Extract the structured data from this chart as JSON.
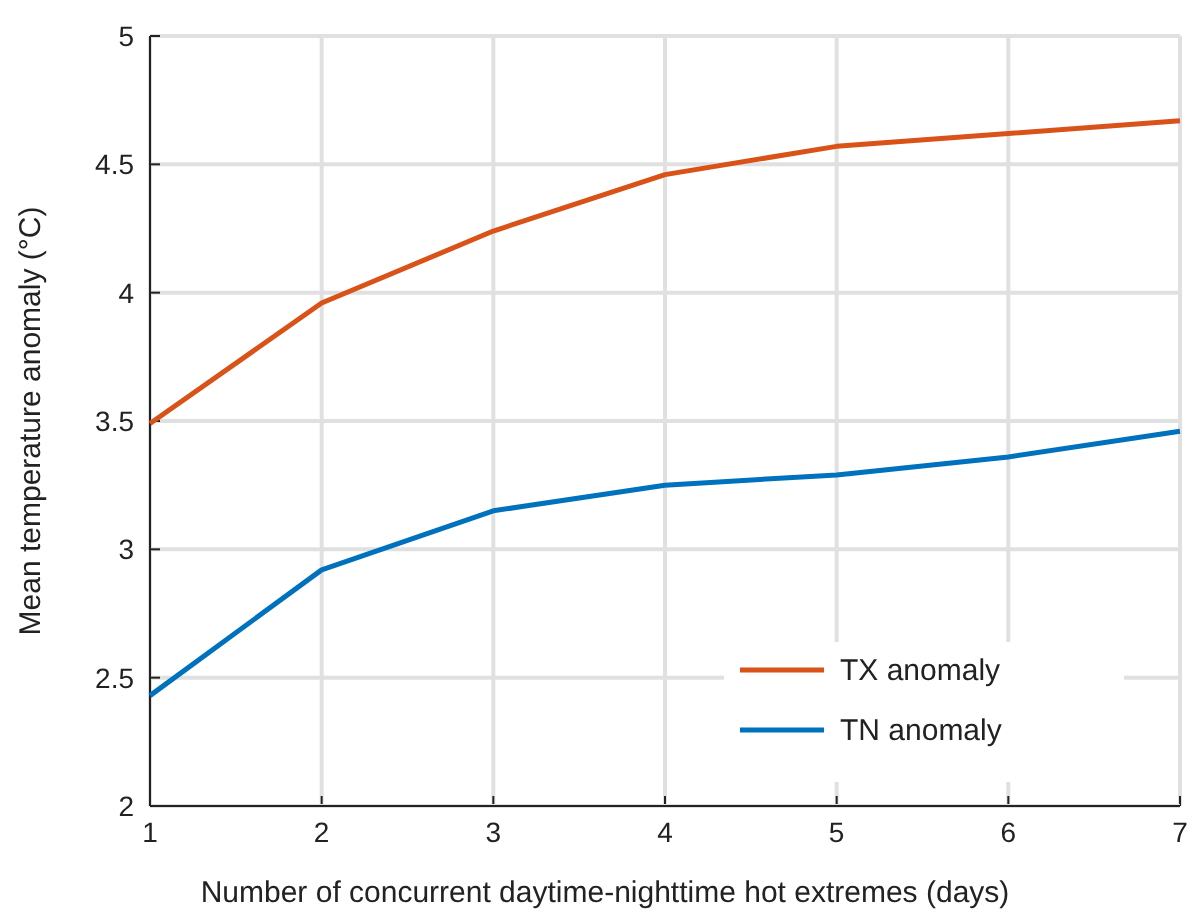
{
  "chart_data": {
    "type": "line",
    "xlabel": "Number of concurrent daytime-nighttime hot extremes (days)",
    "ylabel": "Mean temperature anomaly (°C)",
    "x": [
      1,
      2,
      3,
      4,
      5,
      6,
      7
    ],
    "series": [
      {
        "name": "TX anomaly",
        "color": "#d95319",
        "values": [
          3.49,
          3.96,
          4.24,
          4.46,
          4.57,
          4.62,
          4.67
        ]
      },
      {
        "name": "TN anomaly",
        "color": "#0072bd",
        "values": [
          2.43,
          2.92,
          3.15,
          3.25,
          3.29,
          3.36,
          3.46
        ]
      }
    ],
    "xlim": [
      1,
      7
    ],
    "xticks": [
      1,
      2,
      3,
      4,
      5,
      6,
      7
    ],
    "ylim": [
      2,
      5
    ],
    "yticks": [
      2,
      2.5,
      3,
      3.5,
      4,
      4.5,
      5
    ],
    "grid": true,
    "legend": "bottom right",
    "marker": "none",
    "line_style": "solid"
  }
}
